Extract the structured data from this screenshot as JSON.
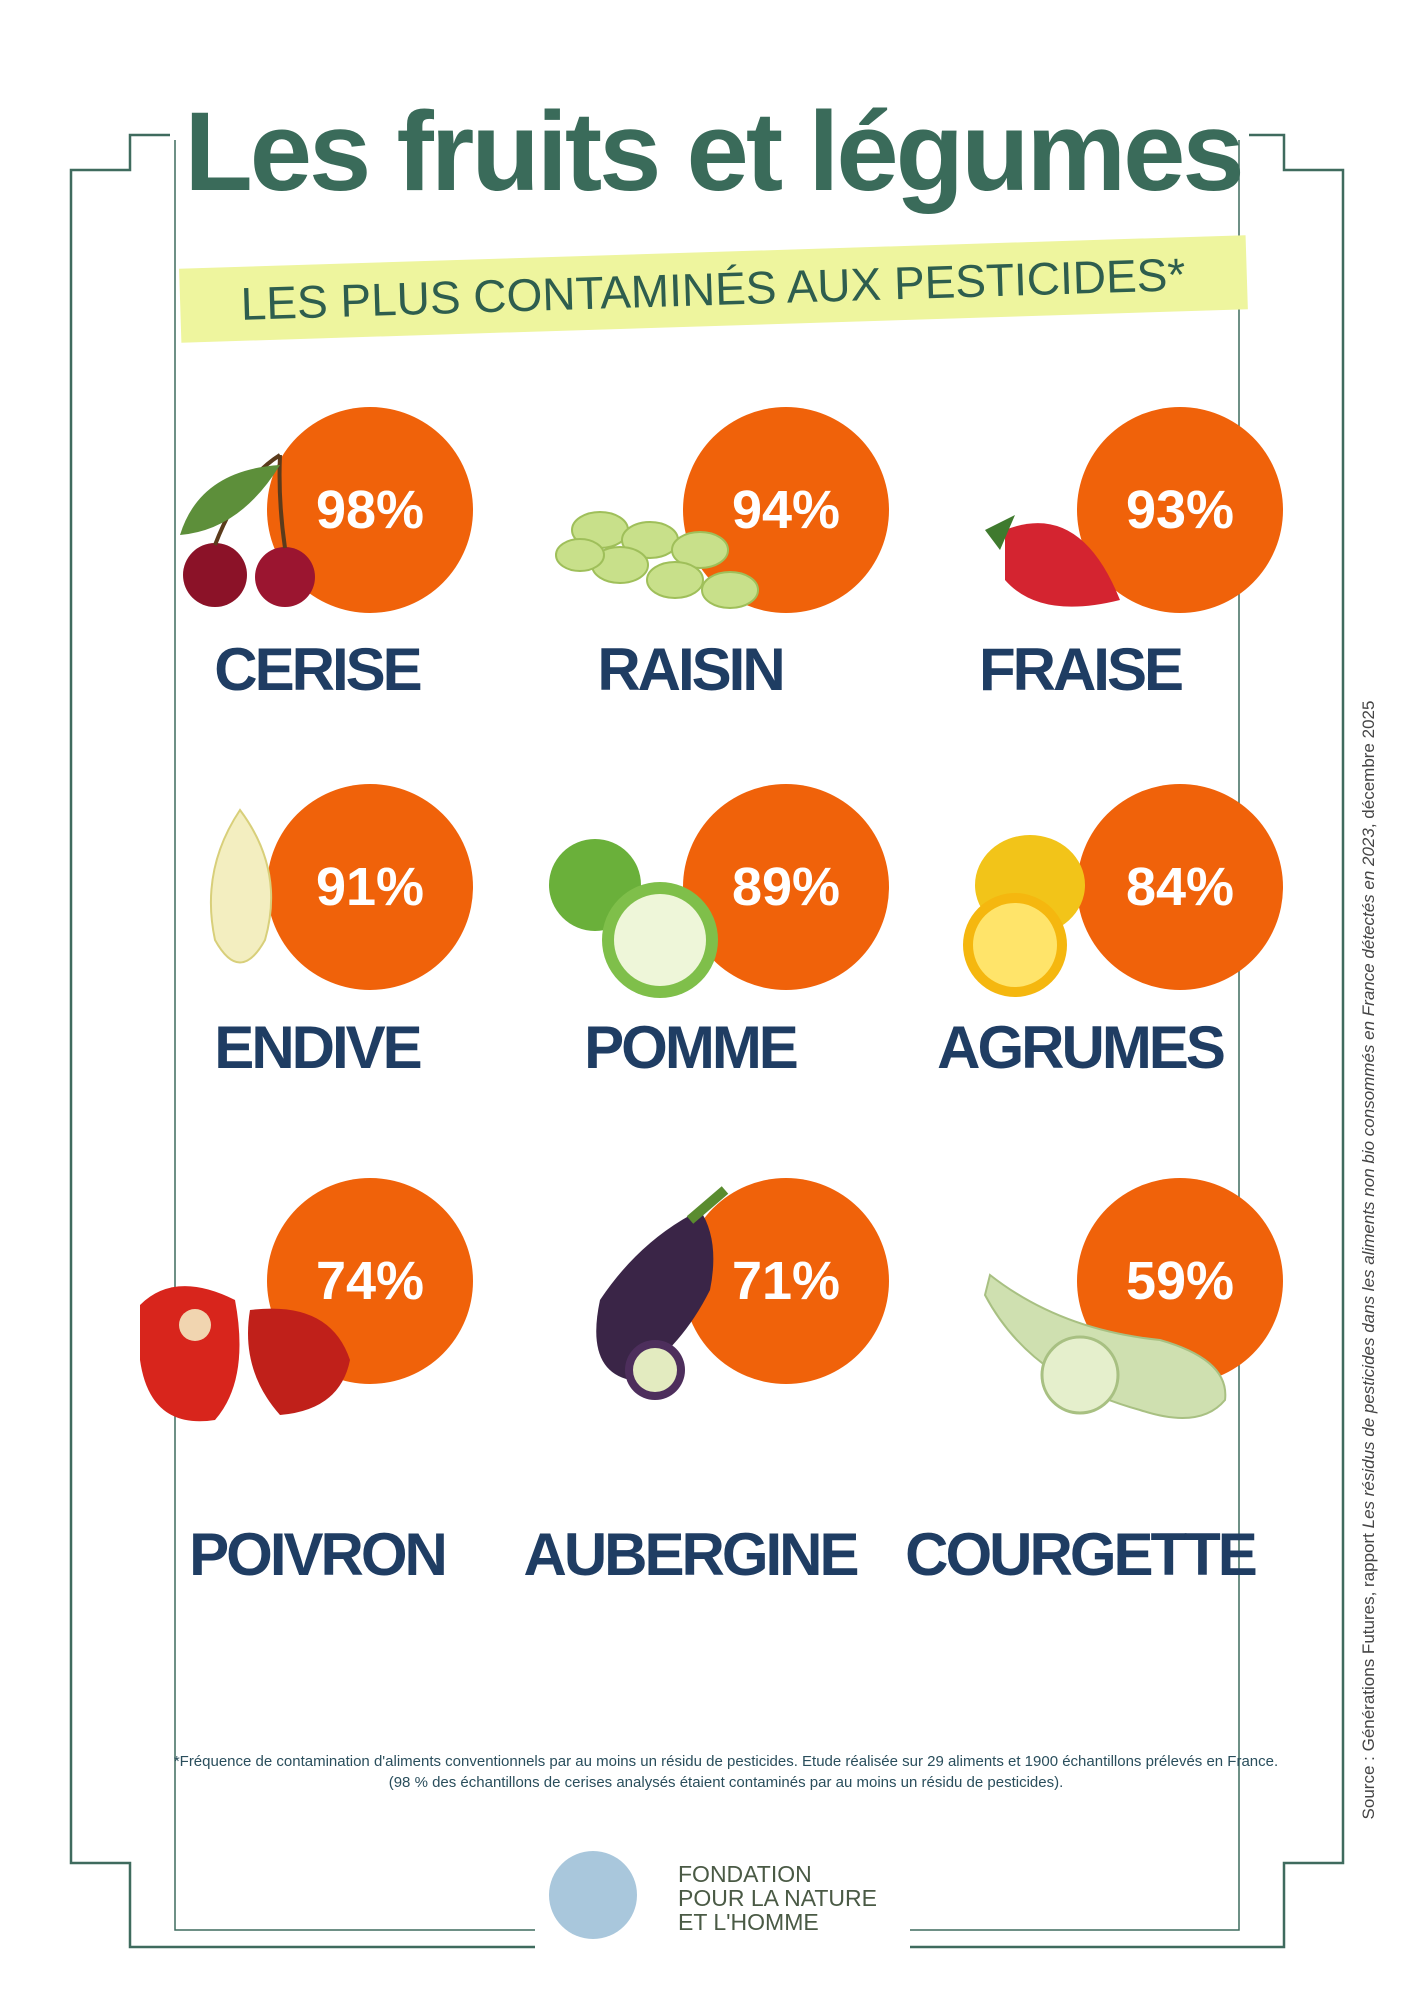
{
  "header": {
    "title": "Les fruits et légumes",
    "subtitle": "LES PLUS CONTAMINÉS AUX PESTICIDES*"
  },
  "items": [
    {
      "name": "CERISE",
      "percent": "98%"
    },
    {
      "name": "RAISIN",
      "percent": "94%"
    },
    {
      "name": "FRAISE",
      "percent": "93%"
    },
    {
      "name": "ENDIVE",
      "percent": "91%"
    },
    {
      "name": "POMME",
      "percent": "89%"
    },
    {
      "name": "AGRUMES",
      "percent": "84%"
    },
    {
      "name": "POIVRON",
      "percent": "74%"
    },
    {
      "name": "AUBERGINE",
      "percent": "71%"
    },
    {
      "name": "COURGETTE",
      "percent": "59%"
    }
  ],
  "footnote": [
    "*Fréquence de contamination d'aliments conventionnels par au moins un résidu de pesticides. Etude réalisée sur 29 aliments et 1900 échantillons prélevés en France.",
    "(98 % des échantillons de cerises analysés étaient contaminés par au moins un résidu de pesticides)."
  ],
  "logo": [
    "FONDATION",
    "POUR LA NATURE",
    "ET L'HOMME"
  ],
  "source": {
    "prefix": "Source : Générations Futures, rapport ",
    "title": "Les résidus de pesticides dans les aliments non bio consommés en France détectés en 2023",
    "suffix": ", décembre 2025"
  }
}
